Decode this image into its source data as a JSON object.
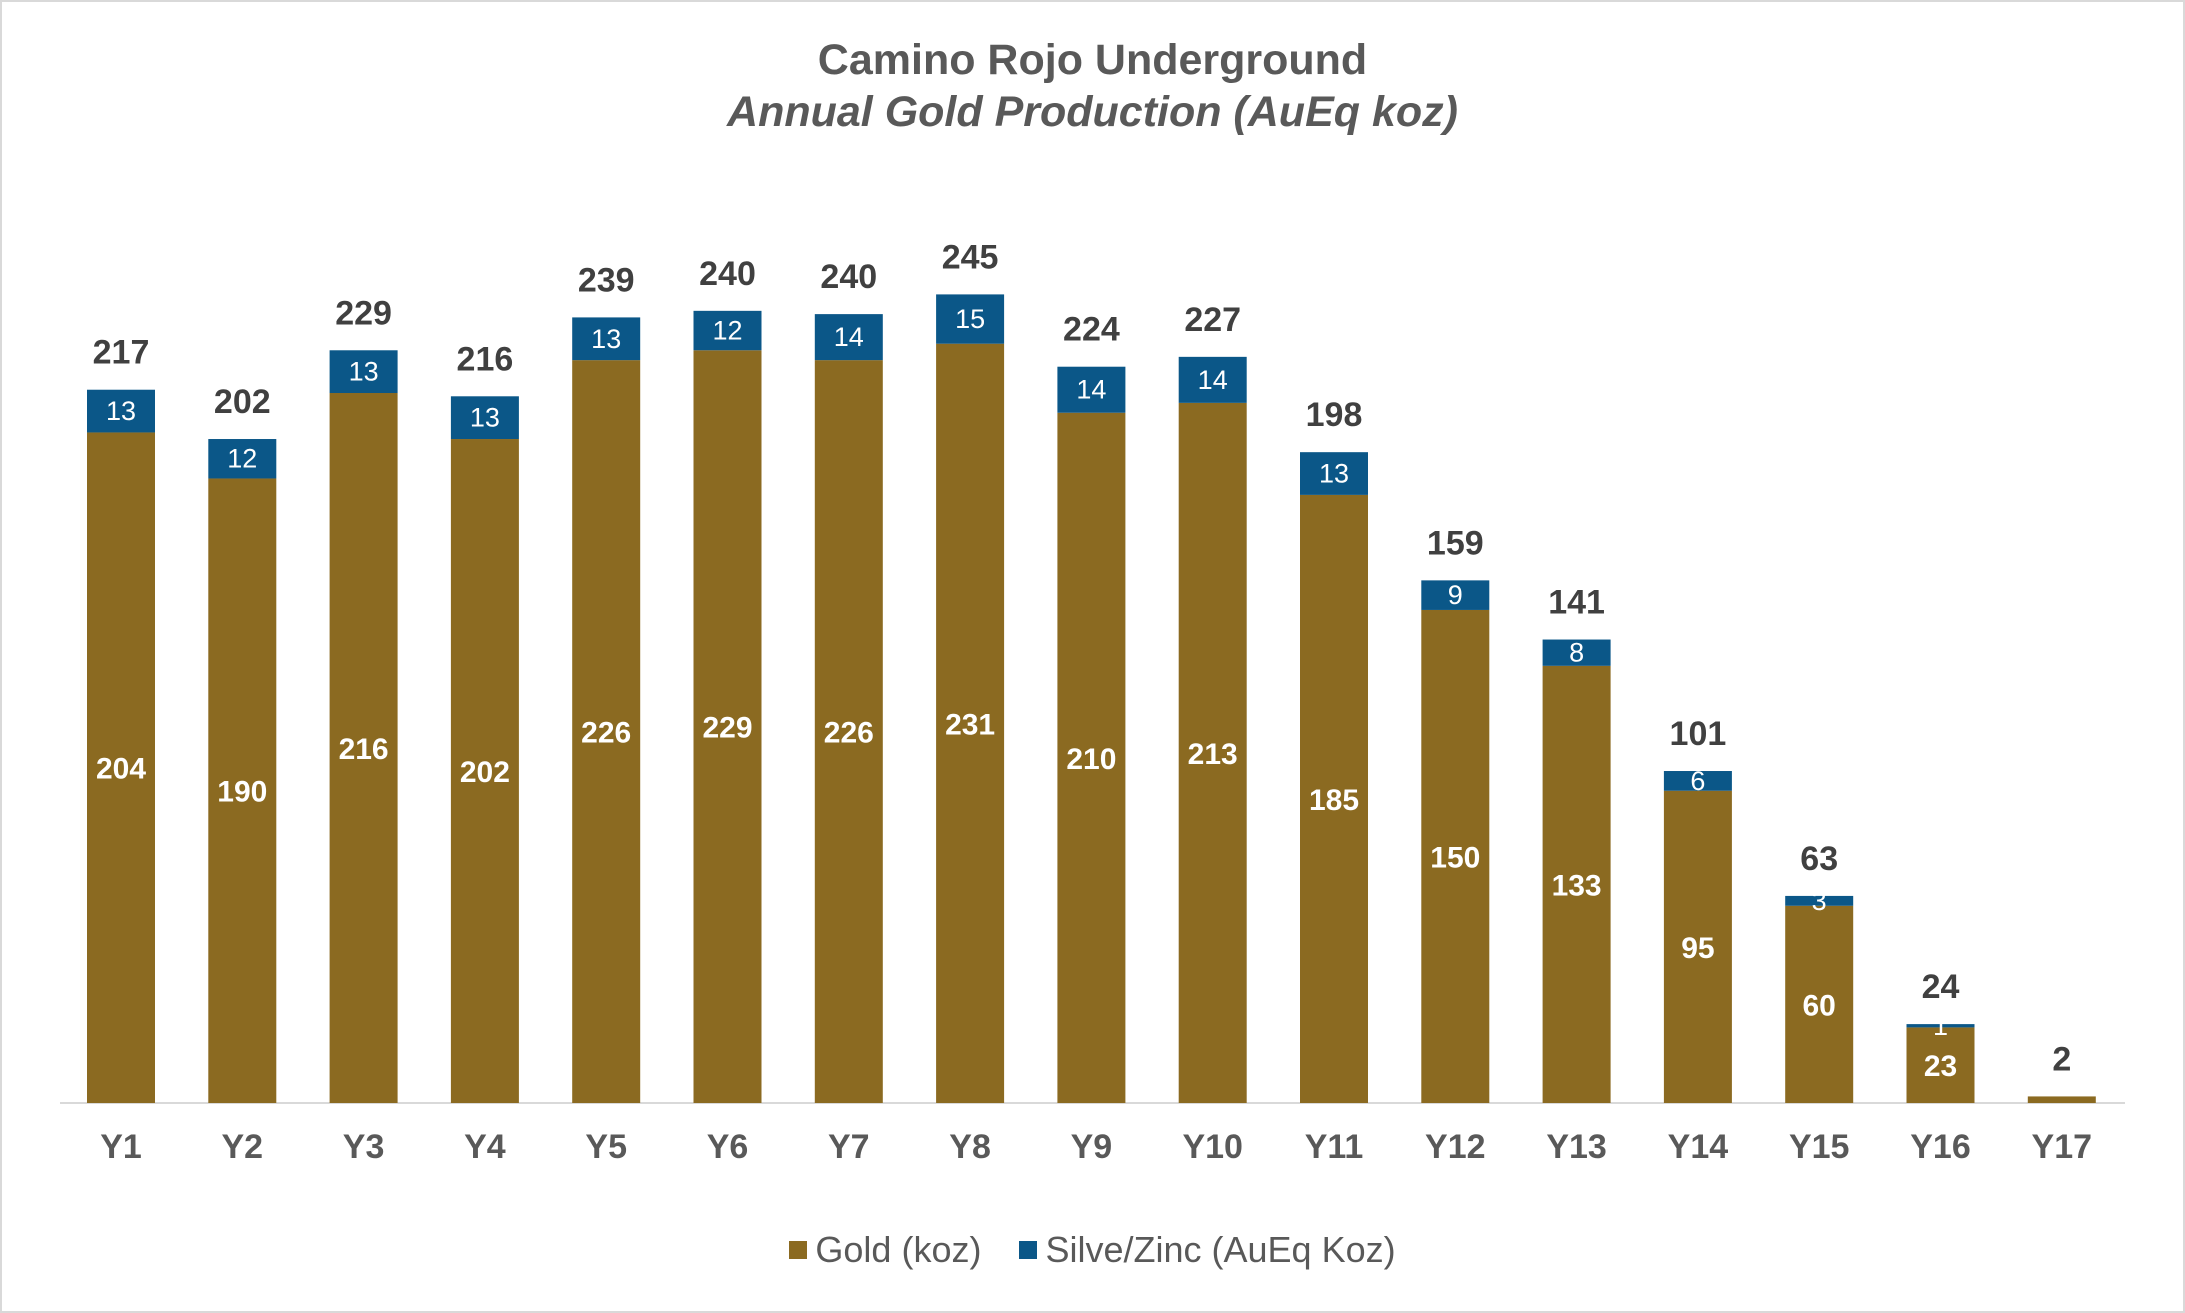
{
  "colors": {
    "gold": "#8b6a21",
    "silver_zinc": "#0b5788",
    "text": "#595959",
    "total_label": "#404040",
    "axis": "#d9d9d9"
  },
  "chart_data": {
    "type": "bar",
    "stacked": true,
    "title": "Camino Rojo Underground",
    "subtitle": "Annual Gold Production (AuEq koz)",
    "categories": [
      "Y1",
      "Y2",
      "Y3",
      "Y4",
      "Y5",
      "Y6",
      "Y7",
      "Y8",
      "Y9",
      "Y10",
      "Y11",
      "Y12",
      "Y13",
      "Y14",
      "Y15",
      "Y16",
      "Y17"
    ],
    "series": [
      {
        "name": "Gold (koz)",
        "values": [
          204,
          190,
          216,
          202,
          226,
          229,
          226,
          231,
          210,
          213,
          185,
          150,
          133,
          95,
          60,
          23,
          2
        ]
      },
      {
        "name": "Silve/Zinc (AuEq Koz)",
        "values": [
          13,
          12,
          13,
          13,
          13,
          12,
          14,
          15,
          14,
          14,
          13,
          9,
          8,
          6,
          3,
          1,
          0
        ]
      }
    ],
    "totals": [
      217,
      202,
      229,
      216,
      239,
      240,
      240,
      245,
      224,
      227,
      198,
      159,
      141,
      101,
      63,
      24,
      2
    ],
    "ylim": [
      0,
      250
    ],
    "legend_position": "bottom",
    "grid": false
  }
}
